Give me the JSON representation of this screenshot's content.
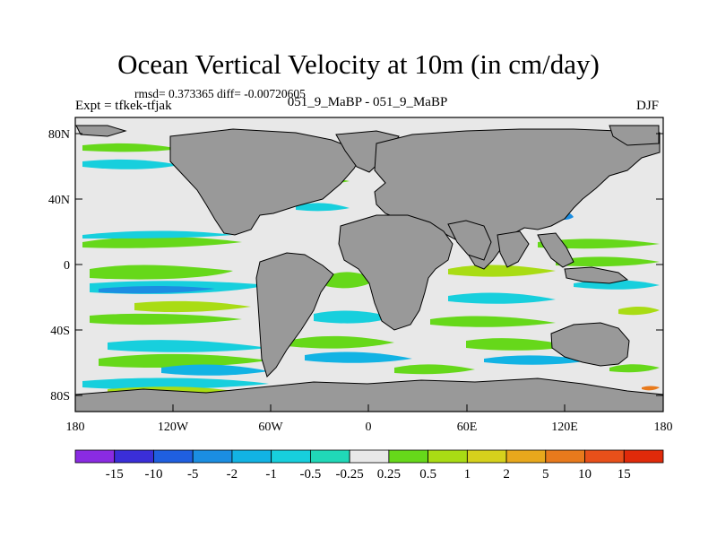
{
  "title": "Ocean Vertical Velocity at 10m (in cm/day)",
  "stats": "rmsd= 0.373365 diff= -0.00720605",
  "experiment": "Expt = tfkek-tfjak",
  "runs": "051_9_MaBP - 051_9_MaBP",
  "season": "DJF",
  "y_axis_labels": [
    "80N",
    "40N",
    "0",
    "40S",
    "80S"
  ],
  "x_axis_labels": [
    "180",
    "120W",
    "60W",
    "0",
    "60E",
    "120E",
    "180"
  ],
  "colorbar": {
    "labels": [
      "-15",
      "-10",
      "-5",
      "-2",
      "-1",
      "-0.5",
      "-0.25",
      "0.25",
      "0.5",
      "1",
      "2",
      "5",
      "10",
      "15"
    ],
    "colors": [
      "#8a2be2",
      "#3a2ed8",
      "#1f5fe0",
      "#1b8ee2",
      "#12b3e4",
      "#17cfdd",
      "#20d8b8",
      "#e8e8e8",
      "#66d81a",
      "#a9dc14",
      "#d6d11c",
      "#e8a81c",
      "#e87a1c",
      "#e8501a",
      "#e02a0a"
    ]
  },
  "colors": {
    "land": "#999999",
    "ocean_background": "#e8e8e8",
    "text": "#000000"
  },
  "chart_data": {
    "type": "heatmap",
    "title": "Ocean Vertical Velocity at 10m (in cm/day)",
    "projection": "cylindrical-equidistant",
    "xlim": [
      -180,
      180
    ],
    "ylim": [
      -90,
      90
    ],
    "units": "cm/day",
    "levels": [
      -15,
      -10,
      -5,
      -2,
      -1,
      -0.5,
      -0.25,
      0.25,
      0.5,
      1,
      2,
      5,
      10,
      15
    ]
  }
}
